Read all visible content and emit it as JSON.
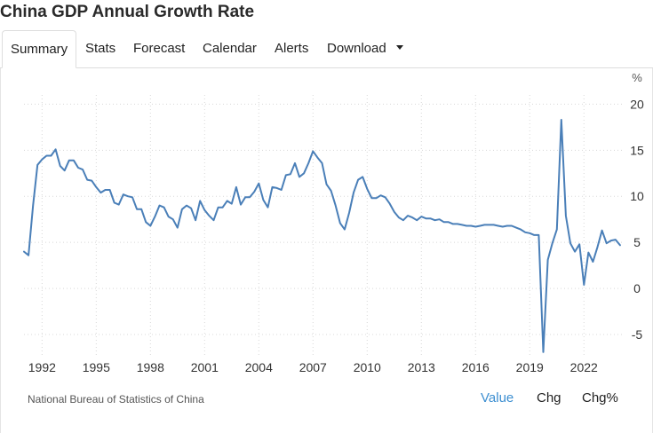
{
  "page": {
    "title": "China GDP Annual Growth Rate"
  },
  "tabs": [
    {
      "label": "Summary",
      "active": true
    },
    {
      "label": "Stats"
    },
    {
      "label": "Forecast"
    },
    {
      "label": "Calendar"
    },
    {
      "label": "Alerts"
    },
    {
      "label": "Download",
      "has_dropdown": true
    }
  ],
  "footer": {
    "source": "National Bureau of Statistics of China",
    "toggles": [
      {
        "label": "Value",
        "selected": true
      },
      {
        "label": "Chg"
      },
      {
        "label": "Chg%"
      }
    ]
  },
  "colors": {
    "line": "#4a7fb8",
    "grid": "#d8d8d8",
    "accent": "#3d8fd1"
  },
  "chart_data": {
    "type": "line",
    "title": "China GDP Annual Growth Rate",
    "xlabel": "",
    "ylabel": "%",
    "ylim": [
      -7.5,
      21
    ],
    "xlim": [
      1991.0,
      2024.25
    ],
    "y_ticks": [
      -5,
      0,
      5,
      10,
      15,
      20
    ],
    "y_tick_labels": [
      "-5",
      "0",
      "5",
      "10",
      "15",
      "20"
    ],
    "x_ticks": [
      1992,
      1995,
      1998,
      2001,
      2004,
      2007,
      2010,
      2013,
      2016,
      2019,
      2022
    ],
    "x_tick_labels": [
      "1992",
      "1995",
      "1998",
      "2001",
      "2004",
      "2007",
      "2010",
      "2013",
      "2016",
      "2019",
      "2022"
    ],
    "grid": true,
    "y_axis_position": "right",
    "series": [
      {
        "x": [
          1991.0,
          1991.25,
          1991.5,
          1991.75,
          1992.0,
          1992.25,
          1992.5,
          1992.75,
          1993.0,
          1993.25,
          1993.5,
          1993.75,
          1994.0,
          1994.25,
          1994.5,
          1994.75,
          1995.0,
          1995.25,
          1995.5,
          1995.75,
          1996.0,
          1996.25,
          1996.5,
          1996.75,
          1997.0,
          1997.25,
          1997.5,
          1997.75,
          1998.0,
          1998.25,
          1998.5,
          1998.75,
          1999.0,
          1999.25,
          1999.5,
          1999.75,
          2000.0,
          2000.25,
          2000.5,
          2000.75,
          2001.0,
          2001.25,
          2001.5,
          2001.75,
          2002.0,
          2002.25,
          2002.5,
          2002.75,
          2003.0,
          2003.25,
          2003.5,
          2003.75,
          2004.0,
          2004.25,
          2004.5,
          2004.75,
          2005.0,
          2005.25,
          2005.5,
          2005.75,
          2006.0,
          2006.25,
          2006.5,
          2006.75,
          2007.0,
          2007.25,
          2007.5,
          2007.75,
          2008.0,
          2008.25,
          2008.5,
          2008.75,
          2009.0,
          2009.25,
          2009.5,
          2009.75,
          2010.0,
          2010.25,
          2010.5,
          2010.75,
          2011.0,
          2011.25,
          2011.5,
          2011.75,
          2012.0,
          2012.25,
          2012.5,
          2012.75,
          2013.0,
          2013.25,
          2013.5,
          2013.75,
          2014.0,
          2014.25,
          2014.5,
          2014.75,
          2015.0,
          2015.25,
          2015.5,
          2015.75,
          2016.0,
          2016.25,
          2016.5,
          2016.75,
          2017.0,
          2017.25,
          2017.5,
          2017.75,
          2018.0,
          2018.25,
          2018.5,
          2018.75,
          2019.0,
          2019.25,
          2019.5,
          2019.75,
          2020.0,
          2020.25,
          2020.5,
          2020.75,
          2021.0,
          2021.25,
          2021.5,
          2021.75,
          2022.0,
          2022.25,
          2022.5,
          2022.75,
          2023.0,
          2023.25,
          2023.5,
          2023.75,
          2024.0
        ],
        "values": [
          4.0,
          3.6,
          9.0,
          13.4,
          14.0,
          14.4,
          14.4,
          15.1,
          13.3,
          12.8,
          13.9,
          13.9,
          13.1,
          12.9,
          11.8,
          11.7,
          11.0,
          10.4,
          10.7,
          10.7,
          9.3,
          9.1,
          10.2,
          10.0,
          9.9,
          8.6,
          8.6,
          7.2,
          6.8,
          7.8,
          9.0,
          8.8,
          7.8,
          7.5,
          6.6,
          8.6,
          9.0,
          8.7,
          7.4,
          9.5,
          8.5,
          7.9,
          7.4,
          8.8,
          8.8,
          9.5,
          9.2,
          11.0,
          9.1,
          9.9,
          9.9,
          10.5,
          11.4,
          9.6,
          8.8,
          11.0,
          10.9,
          10.7,
          12.3,
          12.4,
          13.6,
          12.1,
          12.5,
          13.6,
          14.9,
          14.2,
          13.6,
          11.3,
          10.6,
          9.0,
          7.1,
          6.4,
          8.2,
          10.4,
          11.8,
          12.1,
          10.8,
          9.8,
          9.8,
          10.1,
          9.9,
          9.2,
          8.3,
          7.7,
          7.4,
          7.9,
          7.7,
          7.4,
          7.8,
          7.6,
          7.6,
          7.4,
          7.5,
          7.2,
          7.2,
          7.0,
          7.0,
          6.9,
          6.8,
          6.8,
          6.7,
          6.8,
          6.9,
          6.9,
          6.9,
          6.8,
          6.7,
          6.8,
          6.8,
          6.6,
          6.4,
          6.1,
          6.0,
          5.8,
          5.8,
          -6.9,
          3.1,
          4.9,
          6.4,
          18.3,
          7.9,
          4.9,
          4.0,
          4.8,
          0.4,
          3.9,
          2.9,
          4.5,
          6.3,
          4.9,
          5.2,
          5.3,
          4.7
        ]
      }
    ]
  }
}
